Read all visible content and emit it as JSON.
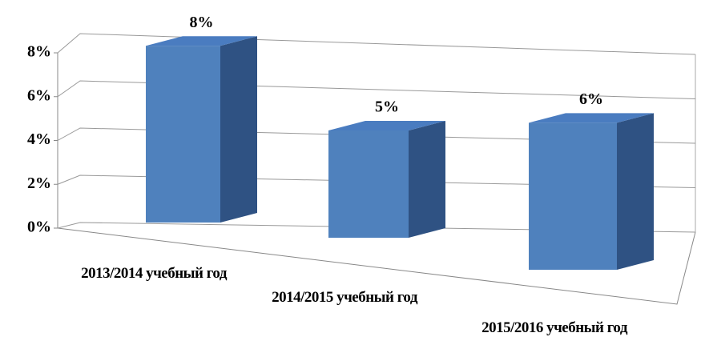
{
  "chart_data": {
    "type": "bar3d",
    "categories": [
      "2013/2014 учебный год",
      "2014/2015 учебный год",
      "2015/2016 учебный год"
    ],
    "values": [
      8,
      5,
      6
    ],
    "value_labels": [
      "8%",
      "5%",
      "6%"
    ],
    "color": "#4f81bd",
    "ylim": [
      0,
      8
    ],
    "yticks": [
      {
        "value": 0,
        "label": "0%"
      },
      {
        "value": 2,
        "label": "2%"
      },
      {
        "value": 4,
        "label": "4%"
      },
      {
        "value": 6,
        "label": "6%"
      },
      {
        "value": 8,
        "label": "8%"
      }
    ],
    "grid": true
  }
}
